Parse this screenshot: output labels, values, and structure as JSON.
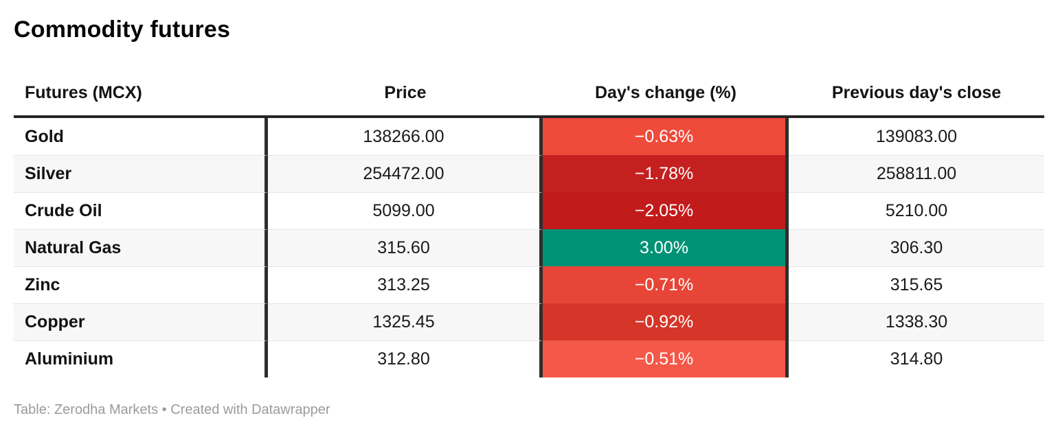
{
  "page": {
    "title": "Commodity futures",
    "footer": {
      "prefix": "Table: ",
      "source": "Zerodha Markets",
      "separator": " • Created with ",
      "tool": "Datawrapper"
    }
  },
  "colors": {
    "header_rule": "#262626",
    "column_rule": "#2e2e2e",
    "row_alt_background": "#f7f7f7",
    "row_separator": "#e4e4e4",
    "negative_strong": "#c21b1b",
    "negative_mild": "#f45848",
    "positive": "#009275"
  },
  "table": {
    "columns": {
      "futures": "Futures (MCX)",
      "price": "Price",
      "change": "Day's change (%)",
      "prev_close": "Previous day's close"
    },
    "rows": [
      {
        "name": "Gold",
        "price": "138266.00",
        "change": "−0.63%",
        "change_color": "#ee4b3b",
        "prev_close": "139083.00"
      },
      {
        "name": "Silver",
        "price": "254472.00",
        "change": "−1.78%",
        "change_color": "#c52020",
        "prev_close": "258811.00"
      },
      {
        "name": "Crude Oil",
        "price": "5099.00",
        "change": "−2.05%",
        "change_color": "#c21b1b",
        "prev_close": "5210.00"
      },
      {
        "name": "Natural Gas",
        "price": "315.60",
        "change": "3.00%",
        "change_color": "#009275",
        "prev_close": "306.30"
      },
      {
        "name": "Zinc",
        "price": "313.25",
        "change": "−0.71%",
        "change_color": "#e74537",
        "prev_close": "315.65"
      },
      {
        "name": "Copper",
        "price": "1325.45",
        "change": "−0.92%",
        "change_color": "#d63529",
        "prev_close": "1338.30"
      },
      {
        "name": "Aluminium",
        "price": "312.80",
        "change": "−0.51%",
        "change_color": "#f45848",
        "prev_close": "314.80"
      }
    ]
  },
  "chart_data": {
    "type": "table",
    "title": "Commodity futures",
    "columns": [
      "Futures (MCX)",
      "Price",
      "Day's change (%)",
      "Previous day's close"
    ],
    "rows": [
      [
        "Gold",
        138266.0,
        -0.63,
        139083.0
      ],
      [
        "Silver",
        254472.0,
        -1.78,
        258811.0
      ],
      [
        "Crude Oil",
        5099.0,
        -2.05,
        5210.0
      ],
      [
        "Natural Gas",
        315.6,
        3.0,
        306.3
      ],
      [
        "Zinc",
        313.25,
        -0.71,
        315.65
      ],
      [
        "Copper",
        1325.45,
        -0.92,
        1338.3
      ],
      [
        "Aluminium",
        312.8,
        -0.51,
        314.8
      ]
    ],
    "notes": "Day's change column rendered as heatmap: red shades for negative (darker = larger loss), green for positive",
    "source_line": "Table: Zerodha Markets • Created with Datawrapper"
  }
}
